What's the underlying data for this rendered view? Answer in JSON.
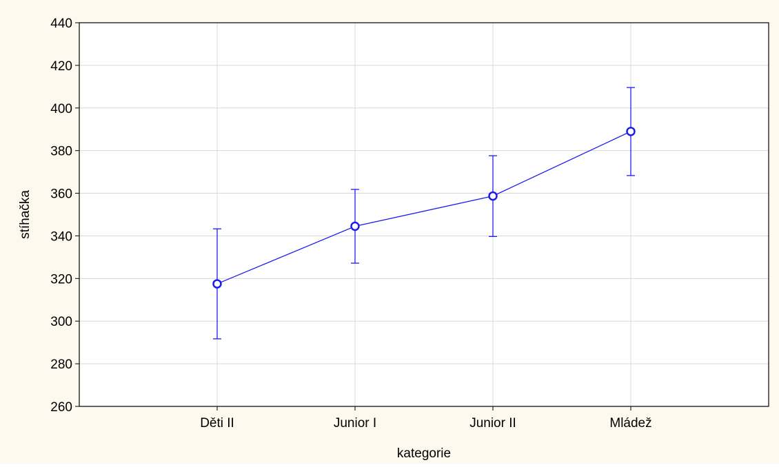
{
  "chart_data": {
    "type": "line",
    "title": "",
    "xlabel": "kategorie",
    "ylabel": "stíhačka",
    "categories": [
      "Děti II",
      "Junior I",
      "Junior II",
      "Mládež"
    ],
    "series": [
      {
        "values": [
          317.5,
          344.5,
          358.7,
          389.0
        ],
        "error_low": [
          291.7,
          327.2,
          339.7,
          368.3
        ],
        "error_high": [
          343.3,
          361.8,
          377.6,
          409.6
        ]
      }
    ],
    "ylim": [
      260,
      440
    ],
    "yticks": [
      "260",
      "280",
      "300",
      "320",
      "340",
      "360",
      "380",
      "400",
      "420",
      "440"
    ],
    "grid": true,
    "colors": {
      "figure_background": "#fdf9ee",
      "plot_background": "#ffffff",
      "series": "#1c1cf0",
      "grid": "#d9d9d9",
      "axis": "#000000"
    }
  }
}
